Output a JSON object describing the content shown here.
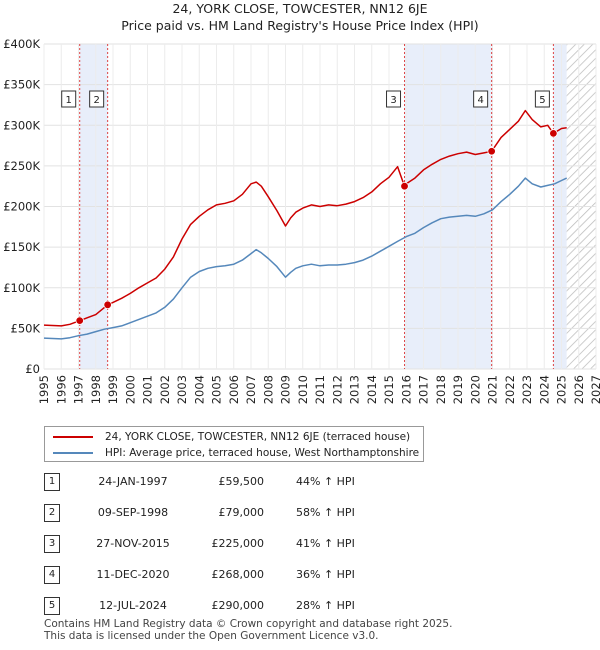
{
  "title_line1": "24, YORK CLOSE, TOWCESTER, NN12 6JE",
  "title_line2": "Price paid vs. HM Land Registry's House Price Index (HPI)",
  "colors": {
    "property": "#cc0000",
    "hpi": "#5588bb",
    "highlight": "#e8eefa",
    "vline": "#dd4444"
  },
  "chart_data": {
    "type": "line",
    "xlim": [
      1995,
      2027
    ],
    "ylim": [
      0,
      400000
    ],
    "x_ticks": [
      1995,
      1996,
      1997,
      1998,
      1999,
      2000,
      2001,
      2002,
      2003,
      2004,
      2005,
      2006,
      2007,
      2008,
      2009,
      2010,
      2011,
      2012,
      2013,
      2014,
      2015,
      2016,
      2017,
      2018,
      2019,
      2020,
      2021,
      2022,
      2023,
      2024,
      2025,
      2026,
      2027
    ],
    "y_ticks": [
      {
        "value": 0,
        "label": "£0"
      },
      {
        "value": 50000,
        "label": "£50K"
      },
      {
        "value": 100000,
        "label": "£100K"
      },
      {
        "value": 150000,
        "label": "£150K"
      },
      {
        "value": 200000,
        "label": "£200K"
      },
      {
        "value": 250000,
        "label": "£250K"
      },
      {
        "value": 300000,
        "label": "£300K"
      },
      {
        "value": 350000,
        "label": "£350K"
      },
      {
        "value": 400000,
        "label": "£400K"
      }
    ],
    "highlight_ranges": [
      [
        1997.07,
        1998.69
      ],
      [
        2015.9,
        2020.95
      ],
      [
        2024.53,
        2025.3
      ]
    ],
    "forecast_start": 2025.3,
    "series": [
      {
        "name": "24, YORK CLOSE, TOWCESTER, NN12 6JE (terraced house)",
        "color": "#cc0000",
        "x": [
          1995.0,
          1995.5,
          1996.0,
          1996.5,
          1997.07,
          1997.5,
          1998.0,
          1998.69,
          1999.0,
          1999.5,
          2000.0,
          2000.5,
          2001.0,
          2001.5,
          2002.0,
          2002.5,
          2003.0,
          2003.5,
          2004.0,
          2004.5,
          2005.0,
          2005.5,
          2006.0,
          2006.5,
          2007.0,
          2007.3,
          2007.6,
          2008.0,
          2008.5,
          2009.0,
          2009.3,
          2009.6,
          2010.0,
          2010.5,
          2011.0,
          2011.5,
          2012.0,
          2012.5,
          2013.0,
          2013.5,
          2014.0,
          2014.5,
          2015.0,
          2015.5,
          2015.9,
          2016.0,
          2016.5,
          2017.0,
          2017.5,
          2018.0,
          2018.5,
          2019.0,
          2019.5,
          2020.0,
          2020.5,
          2020.95,
          2021.5,
          2022.0,
          2022.5,
          2022.9,
          2023.3,
          2023.8,
          2024.2,
          2024.53,
          2025.0,
          2025.3
        ],
        "values": [
          54000,
          53500,
          53000,
          55000,
          59500,
          63000,
          67000,
          79000,
          82000,
          87000,
          93000,
          100000,
          106000,
          112000,
          123000,
          138000,
          160000,
          178000,
          188000,
          196000,
          202000,
          204000,
          207000,
          215000,
          228000,
          230000,
          225000,
          212000,
          195000,
          176000,
          186000,
          193000,
          198000,
          202000,
          200000,
          202000,
          201000,
          203000,
          206000,
          211000,
          218000,
          228000,
          236000,
          249000,
          225000,
          228000,
          235000,
          245000,
          252000,
          258000,
          262000,
          265000,
          267000,
          264000,
          266000,
          268000,
          285000,
          295000,
          305000,
          318000,
          307000,
          298000,
          300000,
          290000,
          296000,
          297000
        ]
      },
      {
        "name": "HPI: Average price, terraced house, West Northamptonshire",
        "color": "#5588bb",
        "x": [
          1995.0,
          1995.5,
          1996.0,
          1996.5,
          1997.0,
          1997.5,
          1998.0,
          1998.5,
          1999.0,
          1999.5,
          2000.0,
          2000.5,
          2001.0,
          2001.5,
          2002.0,
          2002.5,
          2003.0,
          2003.5,
          2004.0,
          2004.5,
          2005.0,
          2005.5,
          2006.0,
          2006.5,
          2007.0,
          2007.3,
          2007.6,
          2008.0,
          2008.5,
          2009.0,
          2009.3,
          2009.6,
          2010.0,
          2010.5,
          2011.0,
          2011.5,
          2012.0,
          2012.5,
          2013.0,
          2013.5,
          2014.0,
          2014.5,
          2015.0,
          2015.5,
          2016.0,
          2016.5,
          2017.0,
          2017.5,
          2018.0,
          2018.5,
          2019.0,
          2019.5,
          2020.0,
          2020.5,
          2021.0,
          2021.5,
          2022.0,
          2022.5,
          2022.9,
          2023.3,
          2023.8,
          2024.2,
          2024.6,
          2025.0,
          2025.3
        ],
        "values": [
          38000,
          37500,
          37000,
          38500,
          41000,
          43000,
          46000,
          49000,
          51000,
          53000,
          57000,
          61000,
          65000,
          69000,
          76000,
          86000,
          100000,
          113000,
          120000,
          124000,
          126000,
          127000,
          129000,
          134000,
          142000,
          147000,
          143000,
          136000,
          126000,
          113000,
          119000,
          124000,
          127000,
          129000,
          127000,
          128000,
          128000,
          129000,
          131000,
          134000,
          139000,
          145000,
          151000,
          157000,
          163000,
          167000,
          174000,
          180000,
          185000,
          187000,
          188000,
          189000,
          188000,
          191000,
          196000,
          206000,
          215000,
          225000,
          235000,
          228000,
          224000,
          226000,
          228000,
          232000,
          235000
        ]
      }
    ],
    "markers": [
      {
        "label": "1",
        "x": 1997.07,
        "value": 59500
      },
      {
        "label": "2",
        "x": 1998.69,
        "value": 79000
      },
      {
        "label": "3",
        "x": 2015.9,
        "value": 225000
      },
      {
        "label": "4",
        "x": 2020.95,
        "value": 268000
      },
      {
        "label": "5",
        "x": 2024.53,
        "value": 290000
      }
    ]
  },
  "legend": {
    "property": "24, YORK CLOSE, TOWCESTER, NN12 6JE (terraced house)",
    "hpi": "HPI: Average price, terraced house, West Northamptonshire"
  },
  "sales": [
    {
      "num": "1",
      "date": "24-JAN-1997",
      "price": "£59,500",
      "hpi": "44% ↑ HPI"
    },
    {
      "num": "2",
      "date": "09-SEP-1998",
      "price": "£79,000",
      "hpi": "58% ↑ HPI"
    },
    {
      "num": "3",
      "date": "27-NOV-2015",
      "price": "£225,000",
      "hpi": "41% ↑ HPI"
    },
    {
      "num": "4",
      "date": "11-DEC-2020",
      "price": "£268,000",
      "hpi": "36% ↑ HPI"
    },
    {
      "num": "5",
      "date": "12-JUL-2024",
      "price": "£290,000",
      "hpi": "28% ↑ HPI"
    }
  ],
  "footer_line1": "Contains HM Land Registry data © Crown copyright and database right 2025.",
  "footer_line2": "This data is licensed under the Open Government Licence v3.0."
}
